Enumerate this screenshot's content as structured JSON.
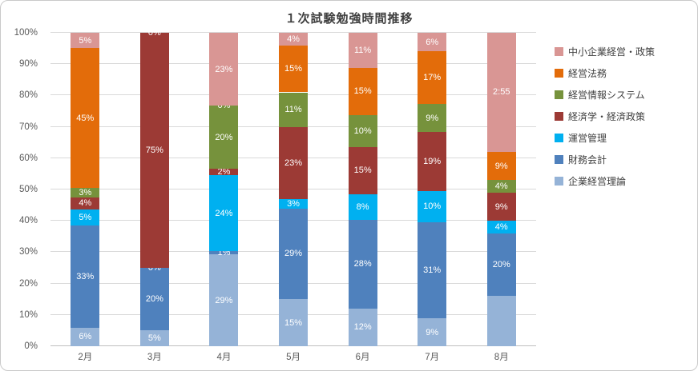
{
  "chart_data": {
    "type": "bar",
    "variant": "100%-stacked-column",
    "title": "１次試験勉強時間推移",
    "categories": [
      "2月",
      "3月",
      "4月",
      "5月",
      "6月",
      "7月",
      "8月"
    ],
    "y_ticks": [
      "0%",
      "10%",
      "20%",
      "30%",
      "40%",
      "50%",
      "60%",
      "70%",
      "80%",
      "90%",
      "100%"
    ],
    "ylim": [
      0,
      100
    ],
    "grid": true,
    "legend_position": "right",
    "label_color": "#FFFFFF",
    "axis_text_color": "#595959",
    "gridline_color": "#D9D9D9",
    "series": [
      {
        "name": "企業経営理論",
        "color": "#95B3D7",
        "values": [
          6,
          5,
          29,
          15,
          12,
          9,
          16
        ],
        "labels": [
          "6%",
          "5%",
          "29%",
          "15%",
          "12%",
          "9%",
          ""
        ]
      },
      {
        "name": "財務会計",
        "color": "#4F81BD",
        "values": [
          33,
          20,
          1,
          29,
          28,
          31,
          20
        ],
        "labels": [
          "33%",
          "20%",
          "1%",
          "29%",
          "28%",
          "31%",
          "20%"
        ]
      },
      {
        "name": "運営管理",
        "color": "#00B0F0",
        "values": [
          5,
          0,
          24,
          3,
          8,
          10,
          4
        ],
        "labels": [
          "5%",
          "0%",
          "24%",
          "3%",
          "8%",
          "10%",
          "4%"
        ]
      },
      {
        "name": "経済学・経済政策",
        "color": "#9C3A35",
        "values": [
          4,
          75,
          2,
          23,
          15,
          19,
          9
        ],
        "labels": [
          "4%",
          "75%",
          "2%",
          "23%",
          "15%",
          "19%",
          "9%"
        ]
      },
      {
        "name": "経営情報システム",
        "color": "#76923C",
        "values": [
          3,
          0,
          20,
          11,
          10,
          9,
          4
        ],
        "labels": [
          "3%",
          "",
          "20%",
          "11%",
          "10%",
          "9%",
          "4%"
        ]
      },
      {
        "name": "経営法務",
        "color": "#E36C0A",
        "values": [
          45,
          0,
          0,
          15,
          15,
          17,
          9
        ],
        "labels": [
          "45%",
          "",
          "0%",
          "15%",
          "15%",
          "17%",
          "9%"
        ]
      },
      {
        "name": "中小企業経営・政策",
        "color": "#D99694",
        "values": [
          5,
          0,
          23,
          4,
          11,
          6,
          38
        ],
        "labels": [
          "5%",
          "0%",
          "23%",
          "4%",
          "11%",
          "6%",
          "2:55"
        ]
      }
    ],
    "legend": [
      "中小企業経営・政策",
      "経営法務",
      "経営情報システム",
      "経済学・経済政策",
      "運営管理",
      "財務会計",
      "企業経営理論"
    ]
  }
}
